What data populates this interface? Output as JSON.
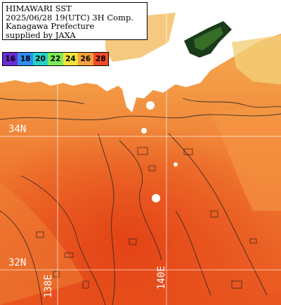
{
  "header": {
    "line1": "HIMAWARI SST",
    "line2": "2025/06/28 19(UTC) 3H Comp.",
    "line3": "Kanagawa Prefecture",
    "line4": "supplied by JAXA"
  },
  "legend": [
    {
      "label": "16",
      "color": "#6a2bd9"
    },
    {
      "label": "18",
      "color": "#2f8cf0"
    },
    {
      "label": "20",
      "color": "#29d0c6"
    },
    {
      "label": "22",
      "color": "#7bea58"
    },
    {
      "label": "24",
      "color": "#efe33a"
    },
    {
      "label": "26",
      "color": "#f4a13b"
    },
    {
      "label": "28",
      "color": "#ee4a2a"
    }
  ],
  "grid_labels": {
    "lat_34": "34N",
    "lat_32": "32N",
    "lon_138": "138E",
    "lon_140": "140E"
  },
  "colors": {
    "sea_warm": "#e8521f",
    "sea_mid": "#f07a2c",
    "sea_cool": "#f5a54a",
    "land": "#ffffff",
    "cloud": "#f2d27a",
    "grid": "#ffffff"
  }
}
